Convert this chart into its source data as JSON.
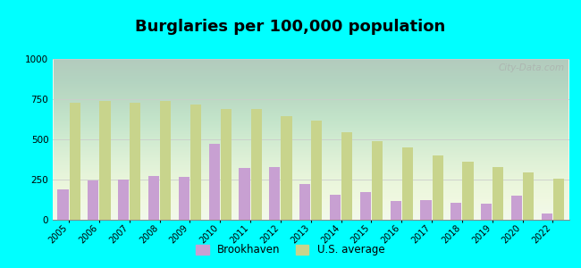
{
  "title": "Burglaries per 100,000 population",
  "years": [
    2005,
    2006,
    2007,
    2008,
    2009,
    2010,
    2011,
    2012,
    2013,
    2014,
    2015,
    2016,
    2017,
    2018,
    2019,
    2020,
    2022
  ],
  "brookhaven": [
    190,
    245,
    250,
    270,
    265,
    470,
    325,
    330,
    225,
    155,
    170,
    115,
    125,
    105,
    100,
    150,
    40
  ],
  "us_average": [
    730,
    740,
    730,
    740,
    715,
    690,
    690,
    645,
    615,
    545,
    490,
    450,
    400,
    360,
    330,
    295,
    258
  ],
  "brookhaven_color": "#c8a0d2",
  "us_average_color": "#c8d48c",
  "background_color": "#00ffff",
  "ylim": [
    0,
    1000
  ],
  "yticks": [
    0,
    250,
    500,
    750,
    1000
  ],
  "title_fontsize": 13,
  "watermark": "City-Data.com",
  "legend_brookhaven": "Brookhaven",
  "legend_us": "U.S. average"
}
